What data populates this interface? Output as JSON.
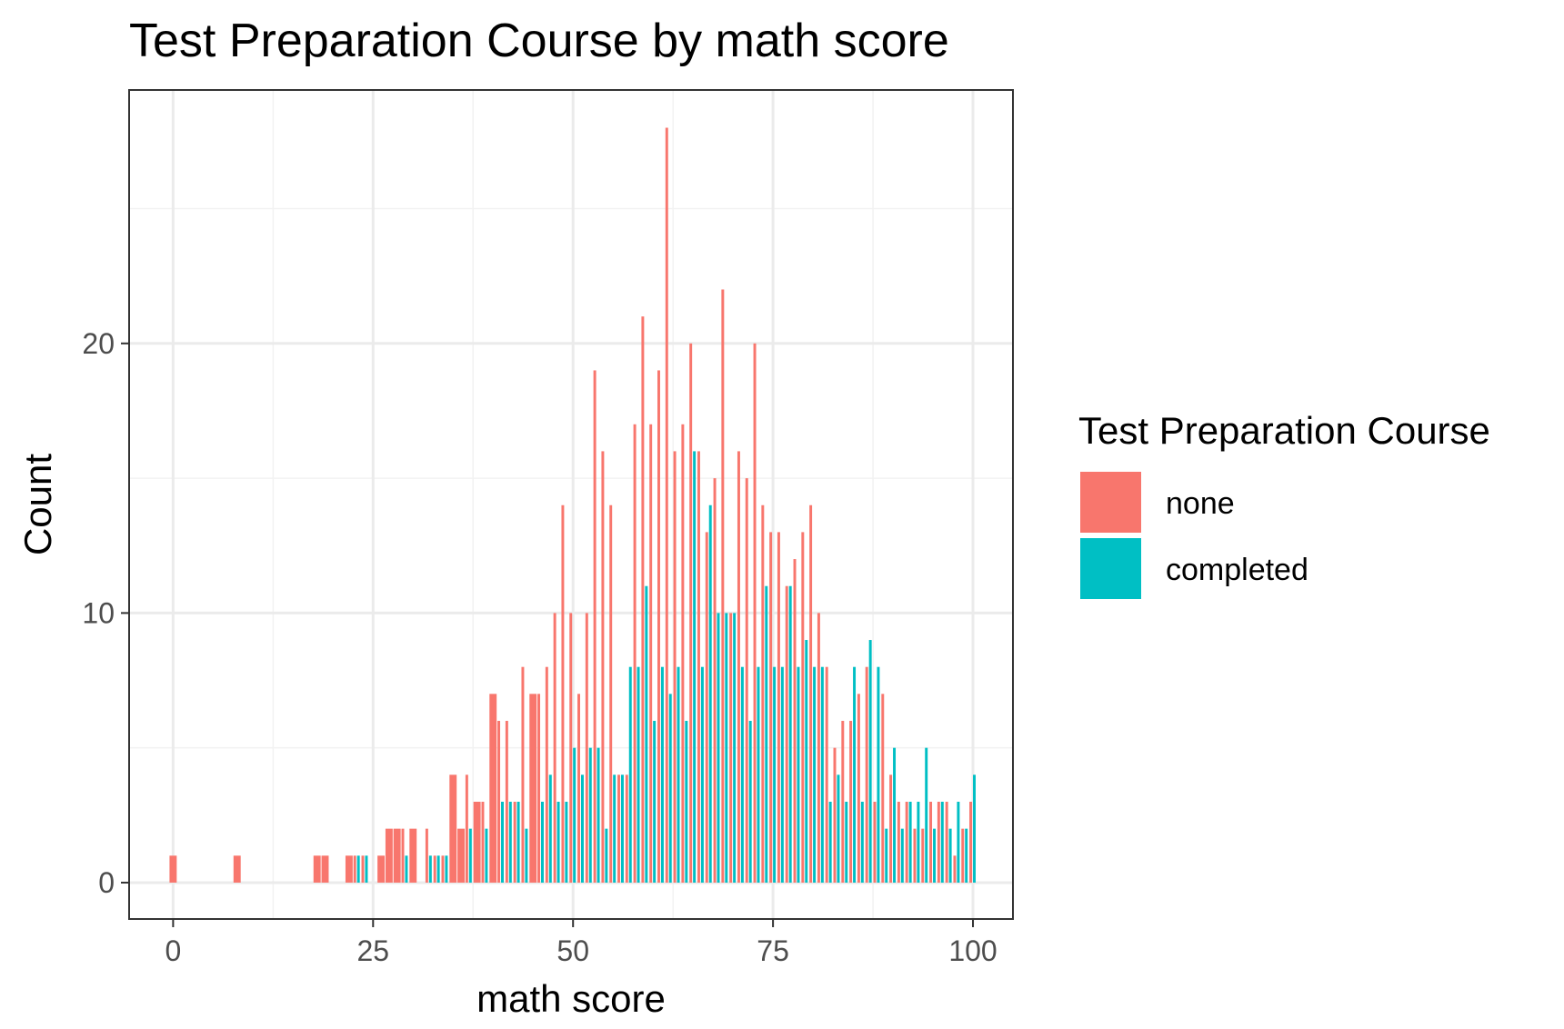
{
  "chart_data": {
    "type": "bar",
    "title": "Test Preparation Course by math score",
    "xlabel": "math score",
    "ylabel": "Count",
    "xlim": [
      -5.5,
      105
    ],
    "ylim": [
      -1.35,
      29.4
    ],
    "x_ticks": [
      0,
      25,
      50,
      75,
      100
    ],
    "x_tick_labels": [
      "0",
      "25",
      "50",
      "75",
      "100"
    ],
    "y_ticks": [
      0,
      10,
      20
    ],
    "y_tick_labels": [
      "0",
      "10",
      "20"
    ],
    "grid": true,
    "legend": {
      "title": "Test Preparation Course",
      "placement": "right",
      "entries": [
        {
          "label": "none",
          "color": "#F8766D"
        },
        {
          "label": "completed",
          "color": "#00BFC4"
        }
      ]
    },
    "series": [
      {
        "name": "none",
        "color": "#F8766D",
        "points": [
          [
            0,
            1
          ],
          [
            8,
            1
          ],
          [
            18,
            1
          ],
          [
            19,
            1
          ],
          [
            22,
            1
          ],
          [
            23,
            1
          ],
          [
            24,
            1
          ],
          [
            26,
            1
          ],
          [
            27,
            2
          ],
          [
            28,
            2
          ],
          [
            29,
            2
          ],
          [
            30,
            2
          ],
          [
            32,
            2
          ],
          [
            33,
            1
          ],
          [
            34,
            1
          ],
          [
            35,
            4
          ],
          [
            36,
            2
          ],
          [
            37,
            4
          ],
          [
            38,
            3
          ],
          [
            39,
            3
          ],
          [
            40,
            7
          ],
          [
            41,
            6
          ],
          [
            42,
            6
          ],
          [
            43,
            3
          ],
          [
            44,
            8
          ],
          [
            45,
            7
          ],
          [
            46,
            7
          ],
          [
            47,
            8
          ],
          [
            48,
            10
          ],
          [
            49,
            14
          ],
          [
            50,
            10
          ],
          [
            51,
            7
          ],
          [
            52,
            10
          ],
          [
            53,
            19
          ],
          [
            54,
            16
          ],
          [
            55,
            14
          ],
          [
            56,
            4
          ],
          [
            57,
            4
          ],
          [
            58,
            17
          ],
          [
            59,
            21
          ],
          [
            60,
            17
          ],
          [
            61,
            19
          ],
          [
            62,
            28
          ],
          [
            63,
            16
          ],
          [
            64,
            17
          ],
          [
            65,
            20
          ],
          [
            66,
            16
          ],
          [
            67,
            13
          ],
          [
            68,
            15
          ],
          [
            69,
            22
          ],
          [
            70,
            10
          ],
          [
            71,
            16
          ],
          [
            72,
            15
          ],
          [
            73,
            20
          ],
          [
            74,
            14
          ],
          [
            75,
            13
          ],
          [
            76,
            13
          ],
          [
            77,
            11
          ],
          [
            78,
            12
          ],
          [
            79,
            13
          ],
          [
            80,
            14
          ],
          [
            81,
            10
          ],
          [
            82,
            8
          ],
          [
            83,
            5
          ],
          [
            84,
            6
          ],
          [
            85,
            6
          ],
          [
            86,
            7
          ],
          [
            87,
            8
          ],
          [
            88,
            3
          ],
          [
            89,
            7
          ],
          [
            90,
            4
          ],
          [
            91,
            3
          ],
          [
            92,
            3
          ],
          [
            93,
            2
          ],
          [
            94,
            2
          ],
          [
            95,
            3
          ],
          [
            96,
            3
          ],
          [
            97,
            3
          ],
          [
            98,
            1
          ],
          [
            99,
            2
          ],
          [
            100,
            3
          ]
        ]
      },
      {
        "name": "completed",
        "color": "#00BFC4",
        "points": [
          [
            23,
            1
          ],
          [
            24,
            1
          ],
          [
            29,
            1
          ],
          [
            32,
            1
          ],
          [
            33,
            1
          ],
          [
            34,
            1
          ],
          [
            37,
            2
          ],
          [
            39,
            2
          ],
          [
            41,
            3
          ],
          [
            42,
            3
          ],
          [
            43,
            3
          ],
          [
            44,
            2
          ],
          [
            46,
            3
          ],
          [
            47,
            4
          ],
          [
            48,
            3
          ],
          [
            49,
            3
          ],
          [
            50,
            5
          ],
          [
            51,
            4
          ],
          [
            52,
            5
          ],
          [
            53,
            5
          ],
          [
            54,
            2
          ],
          [
            55,
            4
          ],
          [
            56,
            4
          ],
          [
            57,
            8
          ],
          [
            58,
            8
          ],
          [
            59,
            11
          ],
          [
            60,
            6
          ],
          [
            61,
            8
          ],
          [
            62,
            7
          ],
          [
            63,
            8
          ],
          [
            64,
            6
          ],
          [
            65,
            16
          ],
          [
            66,
            8
          ],
          [
            67,
            14
          ],
          [
            68,
            10
          ],
          [
            69,
            10
          ],
          [
            70,
            10
          ],
          [
            71,
            8
          ],
          [
            72,
            6
          ],
          [
            73,
            8
          ],
          [
            74,
            11
          ],
          [
            75,
            8
          ],
          [
            76,
            8
          ],
          [
            77,
            11
          ],
          [
            78,
            8
          ],
          [
            79,
            9
          ],
          [
            80,
            8
          ],
          [
            81,
            8
          ],
          [
            82,
            3
          ],
          [
            83,
            4
          ],
          [
            84,
            3
          ],
          [
            85,
            8
          ],
          [
            86,
            3
          ],
          [
            87,
            9
          ],
          [
            88,
            8
          ],
          [
            89,
            2
          ],
          [
            90,
            5
          ],
          [
            91,
            2
          ],
          [
            92,
            3
          ],
          [
            93,
            3
          ],
          [
            94,
            5
          ],
          [
            95,
            2
          ],
          [
            96,
            3
          ],
          [
            97,
            2
          ],
          [
            98,
            3
          ],
          [
            99,
            2
          ],
          [
            100,
            4
          ]
        ]
      }
    ]
  }
}
